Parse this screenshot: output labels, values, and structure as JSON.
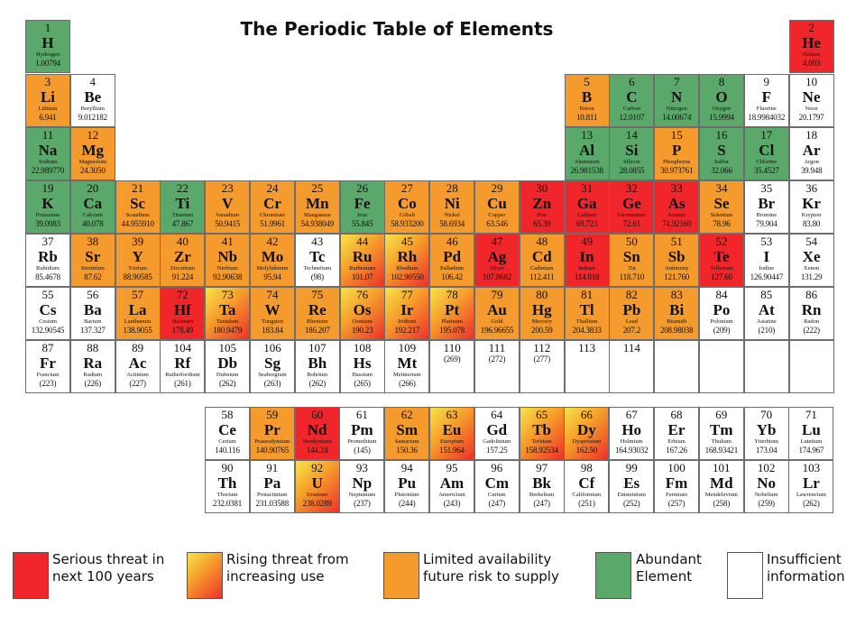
{
  "title": "The Periodic Table of Elements",
  "colors": {
    "serious": "#f0262a",
    "rising": "#f7a72d",
    "limited": "#f59a2c",
    "abundant": "#5aa96a",
    "insufficient": "#ffffff"
  },
  "elements": [
    {
      "n": "1",
      "s": "H",
      "name": "Hydrogen",
      "w": "1.00794",
      "c": "abundant",
      "row": 0,
      "col": 0
    },
    {
      "n": "2",
      "s": "He",
      "name": "Helium",
      "w": "4.003",
      "c": "serious",
      "row": 0,
      "col": 17
    },
    {
      "n": "3",
      "s": "Li",
      "name": "Lithium",
      "w": "6.941",
      "c": "limited",
      "row": 1,
      "col": 0
    },
    {
      "n": "4",
      "s": "Be",
      "name": "Beryllium",
      "w": "9.012182",
      "c": "insufficient",
      "row": 1,
      "col": 1
    },
    {
      "n": "5",
      "s": "B",
      "name": "Boron",
      "w": "10.811",
      "c": "limited",
      "row": 1,
      "col": 12
    },
    {
      "n": "6",
      "s": "C",
      "name": "Carbon",
      "w": "12.0107",
      "c": "abundant",
      "row": 1,
      "col": 13
    },
    {
      "n": "7",
      "s": "N",
      "name": "Nitrogen",
      "w": "14.00674",
      "c": "abundant",
      "row": 1,
      "col": 14
    },
    {
      "n": "8",
      "s": "O",
      "name": "Oxygen",
      "w": "15.9994",
      "c": "abundant",
      "row": 1,
      "col": 15
    },
    {
      "n": "9",
      "s": "F",
      "name": "Fluorine",
      "w": "18.9984032",
      "c": "insufficient",
      "row": 1,
      "col": 16
    },
    {
      "n": "10",
      "s": "Ne",
      "name": "Neon",
      "w": "20.1797",
      "c": "insufficient",
      "row": 1,
      "col": 17
    },
    {
      "n": "11",
      "s": "Na",
      "name": "Sodium",
      "w": "22.989770",
      "c": "abundant",
      "row": 2,
      "col": 0
    },
    {
      "n": "12",
      "s": "Mg",
      "name": "Magnesium",
      "w": "24.3050",
      "c": "limited",
      "row": 2,
      "col": 1
    },
    {
      "n": "13",
      "s": "Al",
      "name": "Aluminum",
      "w": "26.981538",
      "c": "abundant",
      "row": 2,
      "col": 12
    },
    {
      "n": "14",
      "s": "Si",
      "name": "Silicon",
      "w": "28.0855",
      "c": "abundant",
      "row": 2,
      "col": 13
    },
    {
      "n": "15",
      "s": "P",
      "name": "Phosphorus",
      "w": "30.973761",
      "c": "limited",
      "row": 2,
      "col": 14
    },
    {
      "n": "16",
      "s": "S",
      "name": "Sulfur",
      "w": "32.066",
      "c": "abundant",
      "row": 2,
      "col": 15
    },
    {
      "n": "17",
      "s": "Cl",
      "name": "Chlorine",
      "w": "35.4527",
      "c": "abundant",
      "row": 2,
      "col": 16
    },
    {
      "n": "18",
      "s": "Ar",
      "name": "Argon",
      "w": "39.948",
      "c": "insufficient",
      "row": 2,
      "col": 17
    },
    {
      "n": "19",
      "s": "K",
      "name": "Potassium",
      "w": "39.0983",
      "c": "abundant",
      "row": 3,
      "col": 0
    },
    {
      "n": "20",
      "s": "Ca",
      "name": "Calcium",
      "w": "40.078",
      "c": "abundant",
      "row": 3,
      "col": 1
    },
    {
      "n": "21",
      "s": "Sc",
      "name": "Scandium",
      "w": "44.955910",
      "c": "limited",
      "row": 3,
      "col": 2
    },
    {
      "n": "22",
      "s": "Ti",
      "name": "Titanium",
      "w": "47.867",
      "c": "abundant",
      "row": 3,
      "col": 3
    },
    {
      "n": "23",
      "s": "V",
      "name": "Vanadium",
      "w": "50.9415",
      "c": "limited",
      "row": 3,
      "col": 4
    },
    {
      "n": "24",
      "s": "Cr",
      "name": "Chromium",
      "w": "51.9961",
      "c": "limited",
      "row": 3,
      "col": 5
    },
    {
      "n": "25",
      "s": "Mn",
      "name": "Manganese",
      "w": "54.938049",
      "c": "limited",
      "row": 3,
      "col": 6
    },
    {
      "n": "26",
      "s": "Fe",
      "name": "Iron",
      "w": "55.845",
      "c": "abundant",
      "row": 3,
      "col": 7
    },
    {
      "n": "27",
      "s": "Co",
      "name": "Cobalt",
      "w": "58.933200",
      "c": "limited",
      "row": 3,
      "col": 8
    },
    {
      "n": "28",
      "s": "Ni",
      "name": "Nickel",
      "w": "58.6934",
      "c": "limited",
      "row": 3,
      "col": 9
    },
    {
      "n": "29",
      "s": "Cu",
      "name": "Copper",
      "w": "63.546",
      "c": "limited",
      "row": 3,
      "col": 10
    },
    {
      "n": "30",
      "s": "Zn",
      "name": "Zinc",
      "w": "65.39",
      "c": "serious",
      "row": 3,
      "col": 11
    },
    {
      "n": "31",
      "s": "Ga",
      "name": "Gallium",
      "w": "69.723",
      "c": "serious",
      "row": 3,
      "col": 12
    },
    {
      "n": "32",
      "s": "Ge",
      "name": "Germanium",
      "w": "72.61",
      "c": "serious",
      "row": 3,
      "col": 13
    },
    {
      "n": "33",
      "s": "As",
      "name": "Arsenic",
      "w": "74.92160",
      "c": "serious",
      "row": 3,
      "col": 14
    },
    {
      "n": "34",
      "s": "Se",
      "name": "Selenium",
      "w": "78.96",
      "c": "limited",
      "row": 3,
      "col": 15
    },
    {
      "n": "35",
      "s": "Br",
      "name": "Bromine",
      "w": "79.904",
      "c": "insufficient",
      "row": 3,
      "col": 16
    },
    {
      "n": "36",
      "s": "Kr",
      "name": "Krypton",
      "w": "83.80",
      "c": "insufficient",
      "row": 3,
      "col": 17
    },
    {
      "n": "37",
      "s": "Rb",
      "name": "Rubidium",
      "w": "85.4678",
      "c": "insufficient",
      "row": 4,
      "col": 0
    },
    {
      "n": "38",
      "s": "Sr",
      "name": "Strontium",
      "w": "87.62",
      "c": "limited",
      "row": 4,
      "col": 1
    },
    {
      "n": "39",
      "s": "Y",
      "name": "Yttrium",
      "w": "88.90585",
      "c": "limited",
      "row": 4,
      "col": 2
    },
    {
      "n": "40",
      "s": "Zr",
      "name": "Zirconium",
      "w": "91.224",
      "c": "limited",
      "row": 4,
      "col": 3
    },
    {
      "n": "41",
      "s": "Nb",
      "name": "Niobium",
      "w": "92.90638",
      "c": "limited",
      "row": 4,
      "col": 4
    },
    {
      "n": "42",
      "s": "Mo",
      "name": "Molybdenum",
      "w": "95.94",
      "c": "limited",
      "row": 4,
      "col": 5
    },
    {
      "n": "43",
      "s": "Tc",
      "name": "Technetium",
      "w": "(98)",
      "c": "insufficient",
      "row": 4,
      "col": 6
    },
    {
      "n": "44",
      "s": "Ru",
      "name": "Ruthenium",
      "w": "101.07",
      "c": "rising",
      "row": 4,
      "col": 7
    },
    {
      "n": "45",
      "s": "Rh",
      "name": "Rhodium",
      "w": "102.90550",
      "c": "rising",
      "row": 4,
      "col": 8
    },
    {
      "n": "46",
      "s": "Pd",
      "name": "Palladium",
      "w": "106.42",
      "c": "limited",
      "row": 4,
      "col": 9
    },
    {
      "n": "47",
      "s": "Ag",
      "name": "Silver",
      "w": "107.8682",
      "c": "serious",
      "row": 4,
      "col": 10
    },
    {
      "n": "48",
      "s": "Cd",
      "name": "Cadmium",
      "w": "112.411",
      "c": "limited",
      "row": 4,
      "col": 11
    },
    {
      "n": "49",
      "s": "In",
      "name": "Indium",
      "w": "114.818",
      "c": "serious",
      "row": 4,
      "col": 12
    },
    {
      "n": "50",
      "s": "Sn",
      "name": "Tin",
      "w": "118.710",
      "c": "limited",
      "row": 4,
      "col": 13
    },
    {
      "n": "51",
      "s": "Sb",
      "name": "Antimony",
      "w": "121.760",
      "c": "limited",
      "row": 4,
      "col": 14
    },
    {
      "n": "52",
      "s": "Te",
      "name": "Tellurium",
      "w": "127.60",
      "c": "serious",
      "row": 4,
      "col": 15
    },
    {
      "n": "53",
      "s": "I",
      "name": "Iodine",
      "w": "126.90447",
      "c": "insufficient",
      "row": 4,
      "col": 16
    },
    {
      "n": "54",
      "s": "Xe",
      "name": "Xenon",
      "w": "131.29",
      "c": "insufficient",
      "row": 4,
      "col": 17
    },
    {
      "n": "55",
      "s": "Cs",
      "name": "Cesium",
      "w": "132.90545",
      "c": "insufficient",
      "row": 5,
      "col": 0
    },
    {
      "n": "56",
      "s": "Ba",
      "name": "Barium",
      "w": "137.327",
      "c": "insufficient",
      "row": 5,
      "col": 1
    },
    {
      "n": "57",
      "s": "La",
      "name": "Lanthanum",
      "w": "138.9055",
      "c": "limited",
      "row": 5,
      "col": 2
    },
    {
      "n": "72",
      "s": "Hf",
      "name": "Hafnium",
      "w": "178.49",
      "c": "serious",
      "row": 5,
      "col": 3
    },
    {
      "n": "73",
      "s": "Ta",
      "name": "Tantalum",
      "w": "180.9479",
      "c": "rising",
      "row": 5,
      "col": 4
    },
    {
      "n": "74",
      "s": "W",
      "name": "Tungsten",
      "w": "183.84",
      "c": "limited",
      "row": 5,
      "col": 5
    },
    {
      "n": "75",
      "s": "Re",
      "name": "Rhenium",
      "w": "186.207",
      "c": "limited",
      "row": 5,
      "col": 6
    },
    {
      "n": "76",
      "s": "Os",
      "name": "Osmium",
      "w": "190.23",
      "c": "rising",
      "row": 5,
      "col": 7
    },
    {
      "n": "77",
      "s": "Ir",
      "name": "Iridium",
      "w": "192.217",
      "c": "rising",
      "row": 5,
      "col": 8
    },
    {
      "n": "78",
      "s": "Pt",
      "name": "Platinum",
      "w": "195.078",
      "c": "rising",
      "row": 5,
      "col": 9
    },
    {
      "n": "79",
      "s": "Au",
      "name": "Gold",
      "w": "196.96655",
      "c": "limited",
      "row": 5,
      "col": 10
    },
    {
      "n": "80",
      "s": "Hg",
      "name": "Mercury",
      "w": "200.59",
      "c": "limited",
      "row": 5,
      "col": 11
    },
    {
      "n": "81",
      "s": "Tl",
      "name": "Thallium",
      "w": "204.3833",
      "c": "limited",
      "row": 5,
      "col": 12
    },
    {
      "n": "82",
      "s": "Pb",
      "name": "Lead",
      "w": "207.2",
      "c": "limited",
      "row": 5,
      "col": 13
    },
    {
      "n": "83",
      "s": "Bi",
      "name": "Bismuth",
      "w": "208.98038",
      "c": "limited",
      "row": 5,
      "col": 14
    },
    {
      "n": "84",
      "s": "Po",
      "name": "Polonium",
      "w": "(209)",
      "c": "insufficient",
      "row": 5,
      "col": 15
    },
    {
      "n": "85",
      "s": "At",
      "name": "Astatine",
      "w": "(210)",
      "c": "insufficient",
      "row": 5,
      "col": 16
    },
    {
      "n": "86",
      "s": "Rn",
      "name": "Radon",
      "w": "(222)",
      "c": "insufficient",
      "row": 5,
      "col": 17
    },
    {
      "n": "87",
      "s": "Fr",
      "name": "Francium",
      "w": "(223)",
      "c": "insufficient",
      "row": 6,
      "col": 0
    },
    {
      "n": "88",
      "s": "Ra",
      "name": "Radium",
      "w": "(226)",
      "c": "insufficient",
      "row": 6,
      "col": 1
    },
    {
      "n": "89",
      "s": "Ac",
      "name": "Actinium",
      "w": "(227)",
      "c": "insufficient",
      "row": 6,
      "col": 2
    },
    {
      "n": "104",
      "s": "Rf",
      "name": "Rutherfordium",
      "w": "(261)",
      "c": "insufficient",
      "row": 6,
      "col": 3
    },
    {
      "n": "105",
      "s": "Db",
      "name": "Dubnium",
      "w": "(262)",
      "c": "insufficient",
      "row": 6,
      "col": 4
    },
    {
      "n": "106",
      "s": "Sg",
      "name": "Seaborgium",
      "w": "(263)",
      "c": "insufficient",
      "row": 6,
      "col": 5
    },
    {
      "n": "107",
      "s": "Bh",
      "name": "Bohrium",
      "w": "(262)",
      "c": "insufficient",
      "row": 6,
      "col": 6
    },
    {
      "n": "108",
      "s": "Hs",
      "name": "Hassium",
      "w": "(265)",
      "c": "insufficient",
      "row": 6,
      "col": 7
    },
    {
      "n": "109",
      "s": "Mt",
      "name": "Meitnerium",
      "w": "(266)",
      "c": "insufficient",
      "row": 6,
      "col": 8
    },
    {
      "n": "110",
      "s": "",
      "name": "",
      "w": "(269)",
      "c": "insufficient",
      "row": 6,
      "col": 9
    },
    {
      "n": "111",
      "s": "",
      "name": "",
      "w": "(272)",
      "c": "insufficient",
      "row": 6,
      "col": 10
    },
    {
      "n": "112",
      "s": "",
      "name": "",
      "w": "(277)",
      "c": "insufficient",
      "row": 6,
      "col": 11
    },
    {
      "n": "113",
      "s": "",
      "name": "",
      "w": "",
      "c": "insufficient",
      "row": 6,
      "col": 12
    },
    {
      "n": "114",
      "s": "",
      "name": "",
      "w": "",
      "c": "insufficient",
      "row": 6,
      "col": 13
    },
    {
      "n": "",
      "s": "",
      "name": "",
      "w": "",
      "c": "insufficient",
      "row": 6,
      "col": 14
    },
    {
      "n": "",
      "s": "",
      "name": "",
      "w": "",
      "c": "insufficient",
      "row": 6,
      "col": 15
    },
    {
      "n": "",
      "s": "",
      "name": "",
      "w": "",
      "c": "insufficient",
      "row": 6,
      "col": 16
    },
    {
      "n": "",
      "s": "",
      "name": "",
      "w": "",
      "c": "insufficient",
      "row": 6,
      "col": 17
    },
    {
      "n": "58",
      "s": "Ce",
      "name": "Cerium",
      "w": "140.116",
      "c": "insufficient",
      "row": 7,
      "col": 0
    },
    {
      "n": "59",
      "s": "Pr",
      "name": "Praseodymium",
      "w": "140.90765",
      "c": "limited",
      "row": 7,
      "col": 1
    },
    {
      "n": "60",
      "s": "Nd",
      "name": "Neodymium",
      "w": "144.24",
      "c": "serious",
      "row": 7,
      "col": 2
    },
    {
      "n": "61",
      "s": "Pm",
      "name": "Promethium",
      "w": "(145)",
      "c": "insufficient",
      "row": 7,
      "col": 3
    },
    {
      "n": "62",
      "s": "Sm",
      "name": "Samarium",
      "w": "150.36",
      "c": "limited",
      "row": 7,
      "col": 4
    },
    {
      "n": "63",
      "s": "Eu",
      "name": "Europium",
      "w": "151.964",
      "c": "rising",
      "row": 7,
      "col": 5
    },
    {
      "n": "64",
      "s": "Gd",
      "name": "Gadolinium",
      "w": "157.25",
      "c": "insufficient",
      "row": 7,
      "col": 6
    },
    {
      "n": "65",
      "s": "Tb",
      "name": "Terbium",
      "w": "158.92534",
      "c": "rising",
      "row": 7,
      "col": 7
    },
    {
      "n": "66",
      "s": "Dy",
      "name": "Dysprosium",
      "w": "162.50",
      "c": "rising",
      "row": 7,
      "col": 8
    },
    {
      "n": "67",
      "s": "Ho",
      "name": "Holmium",
      "w": "164.93032",
      "c": "insufficient",
      "row": 7,
      "col": 9
    },
    {
      "n": "68",
      "s": "Er",
      "name": "Erbium",
      "w": "167.26",
      "c": "insufficient",
      "row": 7,
      "col": 10
    },
    {
      "n": "69",
      "s": "Tm",
      "name": "Thulium",
      "w": "168.93421",
      "c": "insufficient",
      "row": 7,
      "col": 11
    },
    {
      "n": "70",
      "s": "Yb",
      "name": "Ytterbium",
      "w": "173.04",
      "c": "insufficient",
      "row": 7,
      "col": 12
    },
    {
      "n": "71",
      "s": "Lu",
      "name": "Lutetium",
      "w": "174.967",
      "c": "insufficient",
      "row": 7,
      "col": 13
    },
    {
      "n": "90",
      "s": "Th",
      "name": "Thorium",
      "w": "232.0381",
      "c": "insufficient",
      "row": 8,
      "col": 0
    },
    {
      "n": "91",
      "s": "Pa",
      "name": "Protactinium",
      "w": "231.03588",
      "c": "insufficient",
      "row": 8,
      "col": 1
    },
    {
      "n": "92",
      "s": "U",
      "name": "Uranium",
      "w": "238.0289",
      "c": "rising",
      "row": 8,
      "col": 2
    },
    {
      "n": "93",
      "s": "Np",
      "name": "Neptunium",
      "w": "(237)",
      "c": "insufficient",
      "row": 8,
      "col": 3
    },
    {
      "n": "94",
      "s": "Pu",
      "name": "Plutonium",
      "w": "(244)",
      "c": "insufficient",
      "row": 8,
      "col": 4
    },
    {
      "n": "95",
      "s": "Am",
      "name": "Americium",
      "w": "(243)",
      "c": "insufficient",
      "row": 8,
      "col": 5
    },
    {
      "n": "96",
      "s": "Cm",
      "name": "Curium",
      "w": "(247)",
      "c": "insufficient",
      "row": 8,
      "col": 6
    },
    {
      "n": "97",
      "s": "Bk",
      "name": "Berkelium",
      "w": "(247)",
      "c": "insufficient",
      "row": 8,
      "col": 7
    },
    {
      "n": "98",
      "s": "Cf",
      "name": "Californium",
      "w": "(251)",
      "c": "insufficient",
      "row": 8,
      "col": 8
    },
    {
      "n": "99",
      "s": "Es",
      "name": "Einsteinium",
      "w": "(252)",
      "c": "insufficient",
      "row": 8,
      "col": 9
    },
    {
      "n": "100",
      "s": "Fm",
      "name": "Fermium",
      "w": "(257)",
      "c": "insufficient",
      "row": 8,
      "col": 10
    },
    {
      "n": "101",
      "s": "Md",
      "name": "Mendelevium",
      "w": "(258)",
      "c": "insufficient",
      "row": 8,
      "col": 11
    },
    {
      "n": "102",
      "s": "No",
      "name": "Nobelium",
      "w": "(259)",
      "c": "insufficient",
      "row": 8,
      "col": 12
    },
    {
      "n": "103",
      "s": "Lr",
      "name": "Lawrencium",
      "w": "(262)",
      "c": "insufficient",
      "row": 8,
      "col": 13
    }
  ],
  "legend": [
    {
      "key": "serious",
      "label": "Serious threat in\nnext 100 years"
    },
    {
      "key": "rising",
      "label": "Rising threat from\nincreasing use"
    },
    {
      "key": "limited",
      "label": "Limited availability\nfuture risk to supply"
    },
    {
      "key": "abundant",
      "label": "Abundant\nElement"
    },
    {
      "key": "insufficient",
      "label": "Insufficient\ninformation"
    }
  ]
}
